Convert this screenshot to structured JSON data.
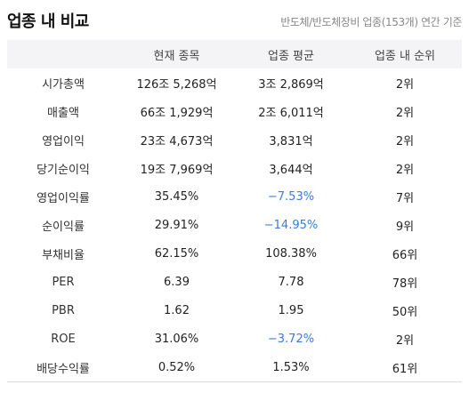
{
  "header": {
    "title": "업종 내 비교",
    "subtitle": "반도체/반도체장비 업종(153개) 연간 기준"
  },
  "table": {
    "columns": [
      "",
      "현재 종목",
      "업종 평균",
      "업종 내 순위"
    ],
    "rows": [
      {
        "label": "시가총액",
        "current": "126조 5,268억",
        "average": "3조 2,869억",
        "rank": "2위",
        "avg_negative": false
      },
      {
        "label": "매출액",
        "current": "66조 1,929억",
        "average": "2조 6,011억",
        "rank": "2위",
        "avg_negative": false
      },
      {
        "label": "영업이익",
        "current": "23조 4,673억",
        "average": "3,831억",
        "rank": "2위",
        "avg_negative": false
      },
      {
        "label": "당기순이익",
        "current": "19조 7,969억",
        "average": "3,644억",
        "rank": "2위",
        "avg_negative": false
      },
      {
        "label": "영업이익률",
        "current": "35.45%",
        "average": "−7.53%",
        "rank": "7위",
        "avg_negative": true
      },
      {
        "label": "순이익률",
        "current": "29.91%",
        "average": "−14.95%",
        "rank": "9위",
        "avg_negative": true
      },
      {
        "label": "부채비율",
        "current": "62.15%",
        "average": "108.38%",
        "rank": "66위",
        "avg_negative": false
      },
      {
        "label": "PER",
        "current": "6.39",
        "average": "7.78",
        "rank": "78위",
        "avg_negative": false
      },
      {
        "label": "PBR",
        "current": "1.62",
        "average": "1.95",
        "rank": "50위",
        "avg_negative": false
      },
      {
        "label": "ROE",
        "current": "31.06%",
        "average": "−3.72%",
        "rank": "2위",
        "avg_negative": true
      },
      {
        "label": "배당수익률",
        "current": "0.52%",
        "average": "1.53%",
        "rank": "61위",
        "avg_negative": false
      }
    ]
  },
  "colors": {
    "negative": "#3a7be0",
    "header_bg": "#f4f4f6"
  }
}
